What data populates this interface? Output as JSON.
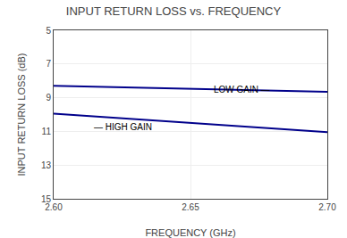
{
  "chart_data": {
    "type": "line",
    "title": "INPUT RETURN LOSS vs. FREQUENCY",
    "xlabel": "FREQUENCY (GHz)",
    "ylabel": "INPUT RETURN LOSS (dB)",
    "x": [
      2.6,
      2.7
    ],
    "series": [
      {
        "color": "#00008B",
        "values": [
          8.3,
          8.65
        ]
      },
      {
        "color": "#00008B",
        "values": [
          9.95,
          11.05
        ]
      }
    ],
    "xlim": [
      2.6,
      2.7
    ],
    "ylim": [
      15,
      5
    ],
    "xticks": [
      {
        "value": 2.6,
        "label": "2.60"
      },
      2.65,
      {
        "value": 2.7,
        "label": "2.70"
      }
    ],
    "yticks": [
      5,
      7,
      9,
      11,
      13,
      15
    ],
    "annotations": [
      {
        "text": "LOW GAIN —",
        "x": 2.658,
        "y": 8.5
      },
      {
        "text": "— HIGH GAIN",
        "x": 2.614,
        "y": 10.72
      }
    ],
    "grid": true
  }
}
